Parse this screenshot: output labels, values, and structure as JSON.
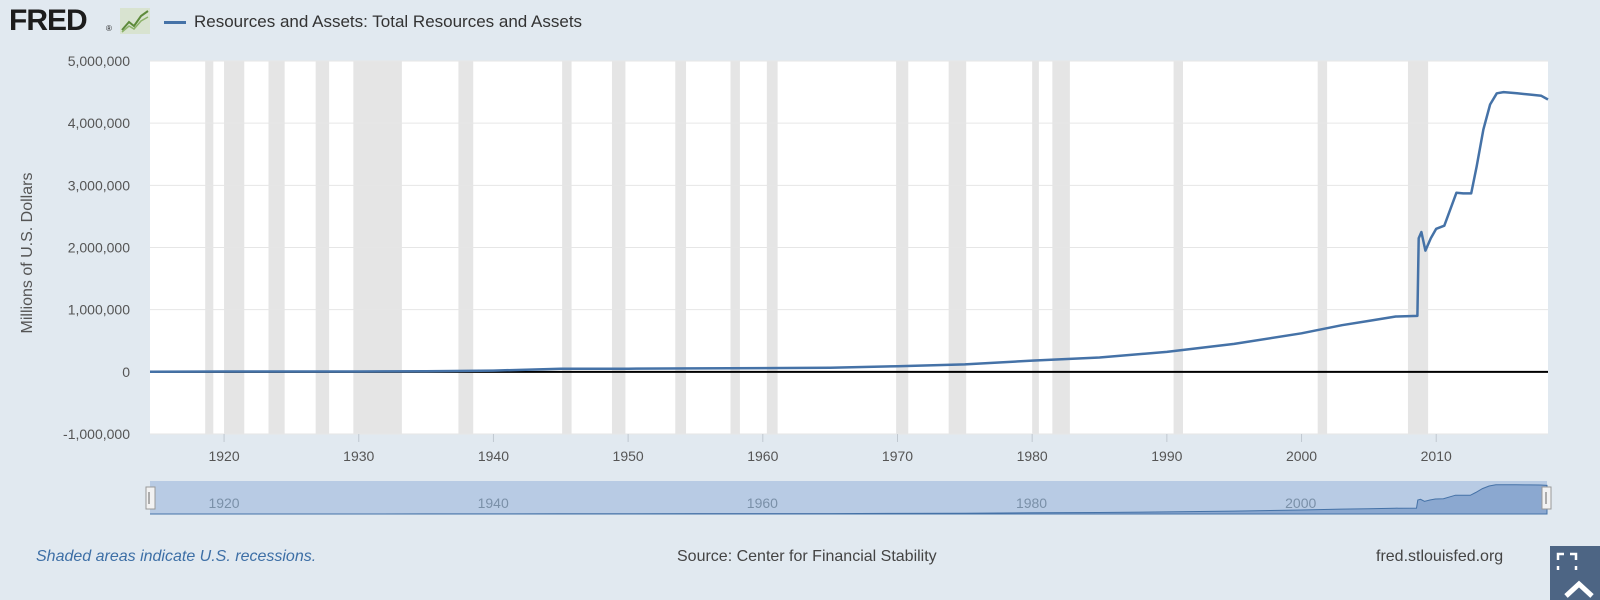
{
  "header": {
    "logo_text": "FRED",
    "logo_mark": "®",
    "logo_icon": "line-chart-icon"
  },
  "colors": {
    "series": "#4572a7",
    "background": "#e1e9f0",
    "plot": "#ffffff",
    "recession": "#e5e5e5",
    "navigator_fill": "#b8cbe4",
    "zero_line": "#000000"
  },
  "chart_data": {
    "type": "line",
    "title": "",
    "xlabel": "",
    "ylabel": "Millions of U.S. Dollars",
    "xlim": [
      1914.5,
      2018.3
    ],
    "ylim": [
      -1000000,
      5000000
    ],
    "y_ticks": [
      -1000000,
      0,
      1000000,
      2000000,
      3000000,
      4000000,
      5000000
    ],
    "y_tick_labels": [
      "-1,000,000",
      "0",
      "1,000,000",
      "2,000,000",
      "3,000,000",
      "4,000,000",
      "5,000,000"
    ],
    "x_ticks": [
      1920,
      1930,
      1940,
      1950,
      1960,
      1970,
      1980,
      1990,
      2000,
      2010
    ],
    "x_tick_labels": [
      "1920",
      "1930",
      "1940",
      "1950",
      "1960",
      "1970",
      "1980",
      "1990",
      "2000",
      "2010"
    ],
    "grid": true,
    "legend": "top-left",
    "series": [
      {
        "name": "Resources and Assets: Total Resources and Assets",
        "x": [
          1914.5,
          1920,
          1930,
          1935,
          1940,
          1945,
          1950,
          1955,
          1960,
          1965,
          1970,
          1975,
          1980,
          1985,
          1990,
          1995,
          2000,
          2003,
          2005,
          2007,
          2008.6,
          2008.7,
          2008.9,
          2009.2,
          2009.6,
          2010,
          2010.6,
          2011.5,
          2012,
          2012.6,
          2013,
          2013.5,
          2014,
          2014.5,
          2015,
          2016,
          2017,
          2017.8,
          2018.3
        ],
        "y": [
          2000,
          5000,
          5000,
          10000,
          20000,
          50000,
          50000,
          55000,
          60000,
          65000,
          90000,
          120000,
          180000,
          230000,
          320000,
          450000,
          620000,
          750000,
          820000,
          890000,
          900000,
          2150000,
          2250000,
          1950000,
          2150000,
          2300000,
          2350000,
          2880000,
          2870000,
          2870000,
          3300000,
          3900000,
          4300000,
          4480000,
          4500000,
          4480000,
          4460000,
          4440000,
          4380000
        ]
      }
    ],
    "recessions": [
      [
        1918.6,
        1919.2
      ],
      [
        1920.0,
        1921.5
      ],
      [
        1923.3,
        1924.5
      ],
      [
        1926.8,
        1927.8
      ],
      [
        1929.6,
        1933.2
      ],
      [
        1937.4,
        1938.5
      ],
      [
        1945.1,
        1945.8
      ],
      [
        1948.8,
        1949.8
      ],
      [
        1953.5,
        1954.3
      ],
      [
        1957.6,
        1958.3
      ],
      [
        1960.3,
        1961.1
      ],
      [
        1969.9,
        1970.8
      ],
      [
        1973.8,
        1975.1
      ],
      [
        1980.0,
        1980.5
      ],
      [
        1981.5,
        1982.8
      ],
      [
        1990.5,
        1991.2
      ],
      [
        2001.2,
        2001.9
      ],
      [
        2007.9,
        2009.4
      ]
    ],
    "navigator": {
      "x_ticks": [
        1920,
        1940,
        1960,
        1980,
        2000
      ],
      "x_tick_labels": [
        "1920",
        "1940",
        "1960",
        "1980",
        "2000"
      ]
    }
  },
  "footer": {
    "note": "Shaded areas indicate U.S. recessions.",
    "source": "Source: Center for Financial Stability",
    "site": "fred.stlouisfed.org",
    "fullscreen_icon": "fullscreen-icon",
    "scroll_icon": "chevron-up-icon"
  }
}
